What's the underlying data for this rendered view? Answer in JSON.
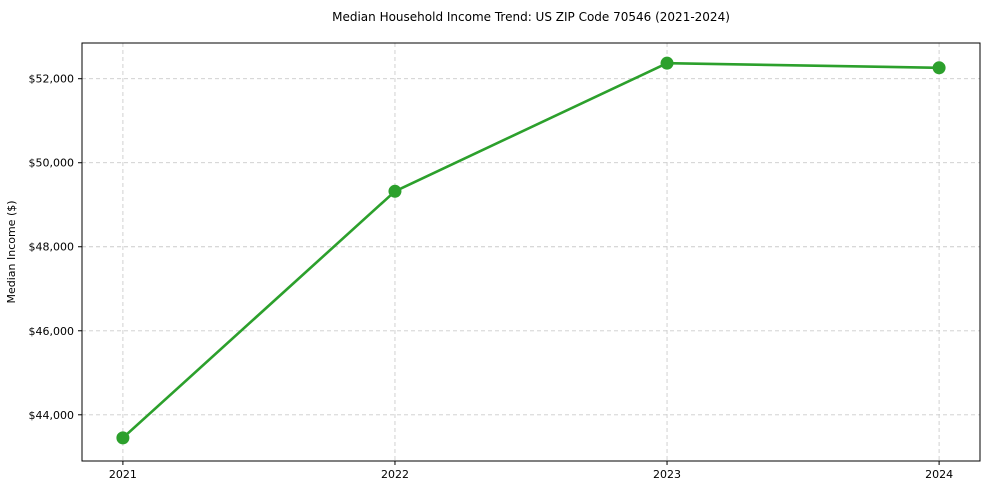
{
  "chart": {
    "title": "Median Household Income Trend: US ZIP Code 70546 (2021-2024)"
  },
  "chart_data": {
    "type": "line",
    "title": "Median Household Income Trend: US ZIP Code 70546 (2021-2024)",
    "x": [
      2021,
      2022,
      2023,
      2024
    ],
    "xtick_labels": [
      "2021",
      "2022",
      "2023",
      "2024"
    ],
    "series": [
      {
        "name": "Median Household Income",
        "values": [
          43450,
          49320,
          52370,
          52260
        ]
      }
    ],
    "xlabel": "",
    "ylabel": "Median Income ($)",
    "ylim": [
      42900,
      52850
    ],
    "yticks": [
      44000,
      46000,
      48000,
      50000,
      52000
    ],
    "ytick_labels": [
      "$44,000",
      "$46,000",
      "$48,000",
      "$50,000",
      "$52,000"
    ],
    "grid": true,
    "grid_style": "dashed",
    "legend_position": "none",
    "colors": {
      "line": "#2ca02c",
      "marker": "#2ca02c",
      "grid": "#cccccc",
      "axis": "#000000",
      "background": "#ffffff"
    }
  }
}
